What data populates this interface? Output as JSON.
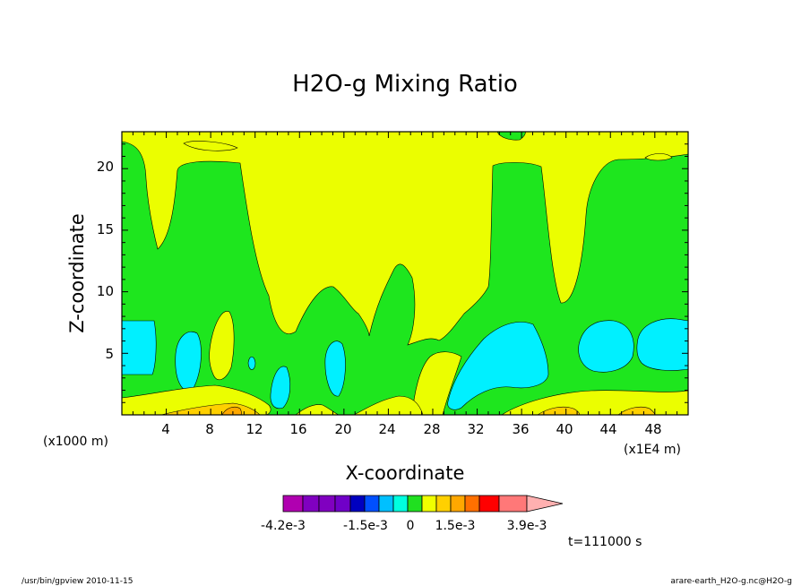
{
  "chart_data": {
    "type": "heatmap",
    "title": "H2O-g Mixing Ratio",
    "xlabel": "X-coordinate",
    "ylabel": "Z-coordinate",
    "x_unit_left": "(x1000 m)",
    "x_unit_right": "(x1E4 m)",
    "xlim": [
      0,
      51
    ],
    "ylim": [
      0,
      23
    ],
    "x_ticks": [
      "4",
      "8",
      "12",
      "16",
      "20",
      "24",
      "28",
      "32",
      "36",
      "40",
      "44",
      "48"
    ],
    "y_ticks": [
      "5",
      "10",
      "15",
      "20"
    ],
    "time_label": "t=111000 s",
    "colorbar": {
      "colors": [
        "#b000b0",
        "#8000c0",
        "#0000c0",
        "#0050ff",
        "#00c0ff",
        "#00ffe0",
        "#20e020",
        "#f0ff00",
        "#ffd000",
        "#ffa800",
        "#ff7000",
        "#ff0000",
        "#ff7878",
        "#ffb0b0"
      ],
      "labels": [
        "-4.2e-3",
        "-1.5e-3",
        "0",
        "1.5e-3",
        "3.9e-3"
      ]
    },
    "colors": {
      "yellow": "#ebfe00",
      "green": "#1ee61e",
      "cyan": "#00f0ff",
      "gold": "#ffd000",
      "orange": "#ffa800"
    }
  },
  "footer": {
    "left": "/usr/bin/gpview  2010-11-15",
    "right": "arare-earth_H2O-g.nc@H2O-g"
  }
}
